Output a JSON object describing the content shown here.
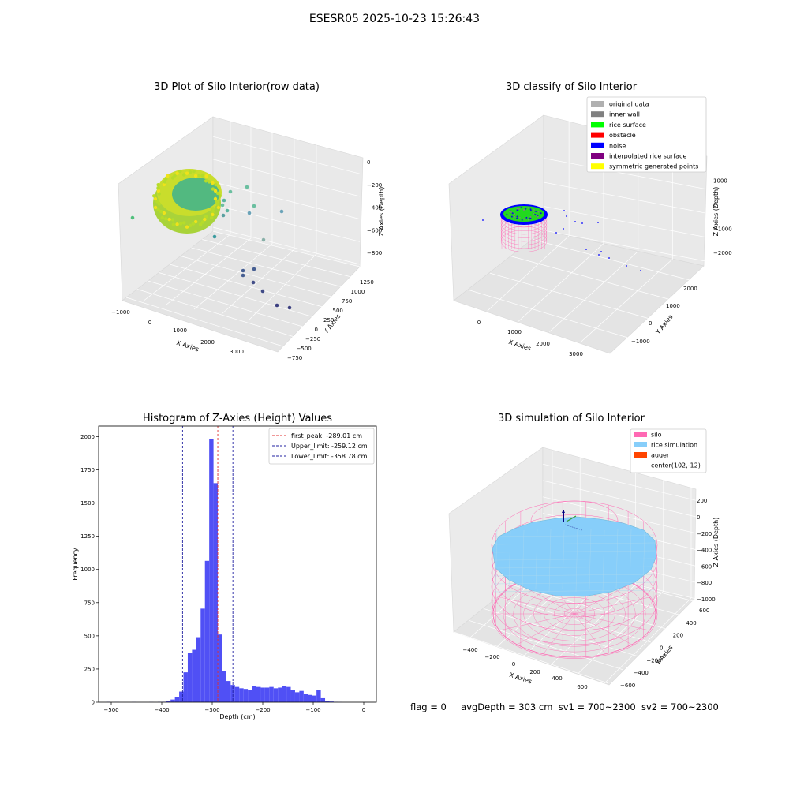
{
  "figure_title": "ESESR05 2025-10-23 15:26:43",
  "footer": {
    "flag": "flag = 0",
    "avg_depth": "avgDepth = 303 cm",
    "sv1": "sv1 = 700~2300",
    "sv2": "sv2 = 700~2300"
  },
  "colors": {
    "hist_bar": "#5050f5",
    "peak_line": "#e03030",
    "limit_line": "#2020a0",
    "silo": "#ff69b4",
    "rice_sim": "#87cefa",
    "auger": "#ff4500"
  },
  "chart_data": [
    {
      "type": "scatter",
      "title": "3D Plot of Silo Interior(row data)",
      "xlabel": "X Axies",
      "ylabel": "Y Axies",
      "zlabel": "Z Axies (Depth)",
      "x_ticks": [
        "−1000",
        "0",
        "1000",
        "2000",
        "3000"
      ],
      "y_ticks": [
        "−750",
        "−500",
        "−250",
        "0",
        "250",
        "500",
        "750",
        "1000",
        "1250"
      ],
      "z_ticks": [
        "−800",
        "−600",
        "−400",
        "−200",
        "0"
      ],
      "grid": true,
      "colormap": "viridis"
    },
    {
      "type": "scatter",
      "title": "3D classify of Silo Interior",
      "xlabel": "X Axies",
      "ylabel": "Y Axies",
      "zlabel": "Z Axies (Depth)",
      "x_ticks": [
        "0",
        "1000",
        "2000",
        "3000"
      ],
      "y_ticks": [
        "−1000",
        "0",
        "1000",
        "2000"
      ],
      "z_ticks": [
        "−2000",
        "−1000",
        "0",
        "1000"
      ],
      "grid": true,
      "legend_position": "top-right",
      "legend": [
        {
          "label": "original data",
          "color": "#b0b0b0"
        },
        {
          "label": "inner wall",
          "color": "#808080"
        },
        {
          "label": "rice surface",
          "color": "#00ff00"
        },
        {
          "label": "obstacle",
          "color": "#ff0000"
        },
        {
          "label": "noise",
          "color": "#0000ff"
        },
        {
          "label": "interpolated rice surface",
          "color": "#800080"
        },
        {
          "label": "symmetric generated points",
          "color": "#ffff00"
        }
      ]
    },
    {
      "type": "bar",
      "title": "Histogram of Z-Axies (Height) Values",
      "xlabel": "Depth (cm)",
      "ylabel": "Frequency",
      "xlim": [
        -525,
        25
      ],
      "ylim": [
        0,
        2080
      ],
      "x_ticks": [
        "−500",
        "−400",
        "−300",
        "−200",
        "−100",
        "0"
      ],
      "y_ticks": [
        "0",
        "250",
        "500",
        "750",
        "1000",
        "1250",
        "1500",
        "1750",
        "2000"
      ],
      "bin_width": 8.5,
      "bin_starts": [
        -510,
        -501.5,
        -493,
        -484.5,
        -476,
        -467.5,
        -459,
        -450.5,
        -442,
        -433.5,
        -425,
        -416.5,
        -408,
        -399.5,
        -391,
        -382.5,
        -374,
        -365.5,
        -357,
        -348.5,
        -340,
        -331.5,
        -323,
        -314.5,
        -306,
        -297.5,
        -289,
        -280.5,
        -272,
        -263.5,
        -255,
        -246.5,
        -238,
        -229.5,
        -221,
        -212.5,
        -204,
        -195.5,
        -187,
        -178.5,
        -170,
        -161.5,
        -153,
        -144.5,
        -136,
        -127.5,
        -119,
        -110.5,
        -102,
        -93.5,
        -85,
        -76.5,
        -68,
        -59.5,
        -51,
        -42.5,
        -34,
        -25.5,
        -17,
        -8.5
      ],
      "values": [
        2,
        0,
        1,
        0,
        0,
        0,
        1,
        0,
        0,
        0,
        1,
        0,
        2,
        3,
        8,
        20,
        40,
        80,
        225,
        370,
        395,
        490,
        705,
        1065,
        1980,
        1650,
        510,
        235,
        160,
        130,
        115,
        105,
        100,
        95,
        120,
        115,
        110,
        110,
        115,
        105,
        110,
        120,
        115,
        95,
        75,
        85,
        65,
        55,
        50,
        95,
        30,
        10,
        5,
        2,
        1,
        0,
        0,
        0,
        0,
        0
      ],
      "lines": [
        {
          "label": "first_peak: -289.01 cm",
          "x": -289.01,
          "style": "red-dashed"
        },
        {
          "label": "Upper_limit: -259.12 cm",
          "x": -259.12,
          "style": "blue-dashed"
        },
        {
          "label": "Lower_limit: -358.78 cm",
          "x": -358.78,
          "style": "blue-dashed"
        }
      ],
      "legend_position": "top-right"
    },
    {
      "type": "scatter",
      "title": "3D simulation of Silo Interior",
      "xlabel": "X Axies",
      "ylabel": "Y Axies",
      "zlabel": "Z Axies (Depth)",
      "x_ticks": [
        "−400",
        "−200",
        "0",
        "200",
        "400",
        "600"
      ],
      "y_ticks": [
        "−600",
        "−400",
        "−200",
        "0",
        "200",
        "400",
        "600"
      ],
      "z_ticks": [
        "−1000",
        "−800",
        "−600",
        "−400",
        "−200",
        "0",
        "200"
      ],
      "grid": true,
      "legend_position": "top-right",
      "legend": [
        {
          "label": "silo",
          "color": "#ff69b4"
        },
        {
          "label": "rice simulation",
          "color": "#87cefa"
        },
        {
          "label": "auger",
          "color": "#ff4500"
        },
        {
          "label": "center(102,-12)",
          "color": ""
        }
      ]
    }
  ]
}
